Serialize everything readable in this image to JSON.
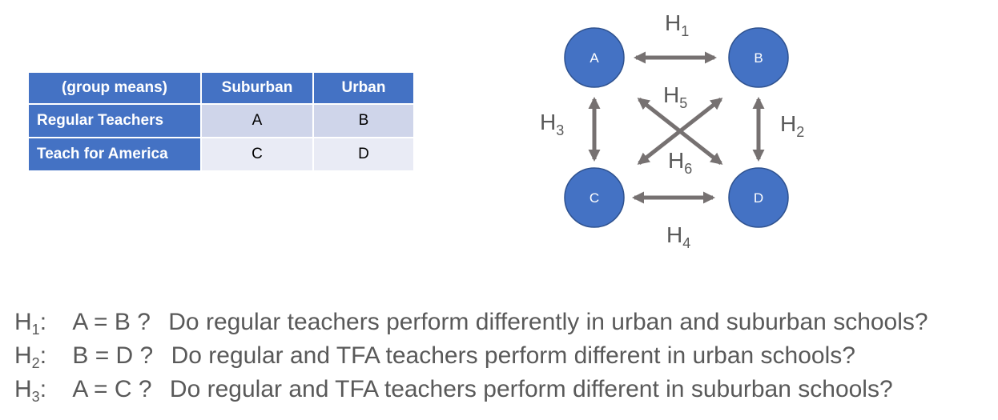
{
  "table": {
    "corner": "(group means)",
    "columns": [
      "Suburban",
      "Urban"
    ],
    "rows": [
      {
        "label": "Regular Teachers",
        "cells": [
          "A",
          "B"
        ]
      },
      {
        "label": "Teach for America",
        "cells": [
          "C",
          "D"
        ]
      }
    ]
  },
  "diagram": {
    "nodes": {
      "A": "A",
      "B": "B",
      "C": "C",
      "D": "D"
    },
    "node_color": "#4472c4",
    "arrow_color": "#767171",
    "edges": {
      "h1": {
        "base": "H",
        "sub": "1"
      },
      "h2": {
        "base": "H",
        "sub": "2"
      },
      "h3": {
        "base": "H",
        "sub": "3"
      },
      "h4": {
        "base": "H",
        "sub": "4"
      },
      "h5": {
        "base": "H",
        "sub": "5"
      },
      "h6": {
        "base": "H",
        "sub": "6"
      }
    }
  },
  "hypotheses": [
    {
      "base": "H",
      "sub": "1",
      "colon": ":",
      "eq": "A = B ?",
      "text": "Do regular teachers perform differently in urban and suburban schools?"
    },
    {
      "base": "H",
      "sub": "2",
      "colon": ":",
      "eq": "B = D ?",
      "text": "Do regular and TFA teachers perform different in urban schools?"
    },
    {
      "base": "H",
      "sub": "3",
      "colon": ":",
      "eq": "A = C ?",
      "text": "Do regular and TFA teachers perform different in suburban schools?"
    }
  ]
}
